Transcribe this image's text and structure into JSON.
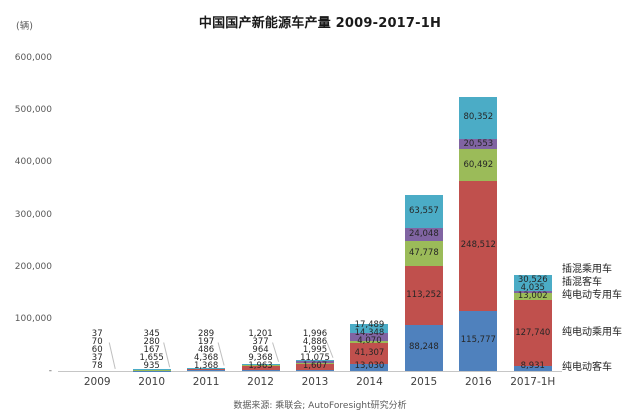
{
  "header": {
    "title": "中国国产新能源车产量 2009-2017-1H"
  },
  "footer": {
    "source_text": "数据来源: 乘联会; AutoForesight研究分析"
  },
  "chart_data": {
    "type": "bar",
    "stacked": true,
    "title": "中国国产新能源车产量 2009-2017-1H",
    "unit_label": "(辆)",
    "categories": [
      "2009",
      "2010",
      "2011",
      "2012",
      "2013",
      "2014",
      "2015",
      "2016",
      "2017-1H"
    ],
    "series": [
      {
        "name": "纯电动客车",
        "color": "#4F81BD",
        "values": [
          78,
          935,
          1368,
          1963,
          1607,
          13030,
          88248,
          115777,
          8931
        ]
      },
      {
        "name": "纯电动乘用车",
        "color": "#C0504D",
        "values": [
          37,
          1655,
          4368,
          9368,
          11075,
          41307,
          113252,
          248512,
          127740
        ]
      },
      {
        "name": "纯电动专用车",
        "color": "#9BBB59",
        "values": [
          60,
          167,
          486,
          964,
          1995,
          4070,
          47778,
          60492,
          13002
        ]
      },
      {
        "name": "插混客车",
        "color": "#8064A2",
        "values": [
          70,
          280,
          197,
          377,
          4886,
          14348,
          24048,
          20553,
          4035
        ]
      },
      {
        "name": "插混乘用车",
        "color": "#4BACC6",
        "values": [
          37,
          345,
          289,
          1201,
          1996,
          17489,
          63557,
          80352,
          30526
        ]
      }
    ],
    "ylim": [
      0,
      600000
    ],
    "ytick_labels": [
      "600,000",
      "500,000",
      "400,000",
      "300,000",
      "200,000",
      "100,000",
      "-"
    ],
    "gridlines": false,
    "legend_position": "right-of-last-bar",
    "axis_color": "#C6C6C6"
  }
}
